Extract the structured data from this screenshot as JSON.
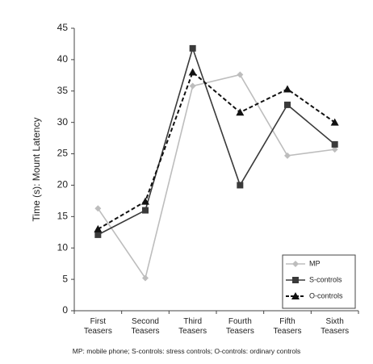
{
  "chart_data": {
    "type": "line",
    "y_label": "Time (s): Mount Latency",
    "caption": "MP: mobile phone; S-controls: stress controls; O-controls: ordinary controls",
    "categories": [
      "First Teasers",
      "Second Teasers",
      "Third Teasers",
      "Fourth Teasers",
      "Fifth Teasers",
      "Sixth Teasers"
    ],
    "series": [
      {
        "name": "MP",
        "color": "#bdbdbd",
        "marker": "diamond",
        "dash": false,
        "values": [
          16.3,
          5.2,
          35.8,
          37.6,
          24.7,
          25.7
        ]
      },
      {
        "name": "S-controls",
        "color": "#3a3a3a",
        "marker": "square",
        "dash": false,
        "values": [
          12.1,
          16.0,
          41.8,
          20.0,
          32.8,
          26.5
        ]
      },
      {
        "name": "O-controls",
        "color": "#111111",
        "marker": "triangle",
        "dash": true,
        "values": [
          13.0,
          17.4,
          38.0,
          31.6,
          35.3,
          30.0
        ]
      }
    ],
    "ylim": [
      0,
      45
    ],
    "yticks": [
      0,
      5,
      10,
      15,
      20,
      25,
      30,
      35,
      40,
      45
    ],
    "grid": false,
    "legend": "lower right"
  }
}
